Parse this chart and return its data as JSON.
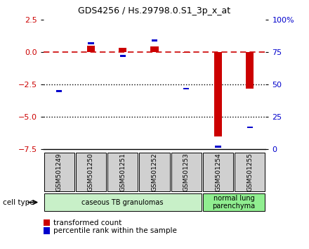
{
  "title": "GDS4256 / Hs.29798.0.S1_3p_x_at",
  "samples": [
    "GSM501249",
    "GSM501250",
    "GSM501251",
    "GSM501252",
    "GSM501253",
    "GSM501254",
    "GSM501255"
  ],
  "red_values": [
    0.0,
    0.5,
    0.35,
    0.45,
    -0.05,
    -6.5,
    -2.8
  ],
  "blue_y_left": [
    -3.0,
    0.7,
    -0.3,
    0.9,
    -2.8,
    -7.3,
    -5.8
  ],
  "ylim_left": [
    -7.5,
    2.5
  ],
  "ylim_right": [
    0,
    100
  ],
  "left_ticks": [
    2.5,
    0,
    -2.5,
    -5,
    -7.5
  ],
  "right_ticks": [
    100,
    75,
    50,
    25,
    0
  ],
  "right_tick_labels": [
    "100%",
    "75",
    "50",
    "25",
    "0"
  ],
  "dotted_lines": [
    -2.5,
    -5
  ],
  "cell_type_groups": [
    {
      "label": "caseous TB granulomas",
      "samples": [
        "GSM501249",
        "GSM501250",
        "GSM501251",
        "GSM501252",
        "GSM501253"
      ],
      "color": "#c8f0c8"
    },
    {
      "label": "normal lung\nparenchyma",
      "samples": [
        "GSM501254",
        "GSM501255"
      ],
      "color": "#90ee90"
    }
  ],
  "legend_red": "transformed count",
  "legend_blue": "percentile rank within the sample",
  "cell_type_label": "cell type",
  "background_color": "#ffffff",
  "red_color": "#cc0000",
  "blue_color": "#0000cc",
  "dashed_line_color": "#cc0000",
  "dotted_line_color": "#000000",
  "box_color": "#d0d0d0"
}
